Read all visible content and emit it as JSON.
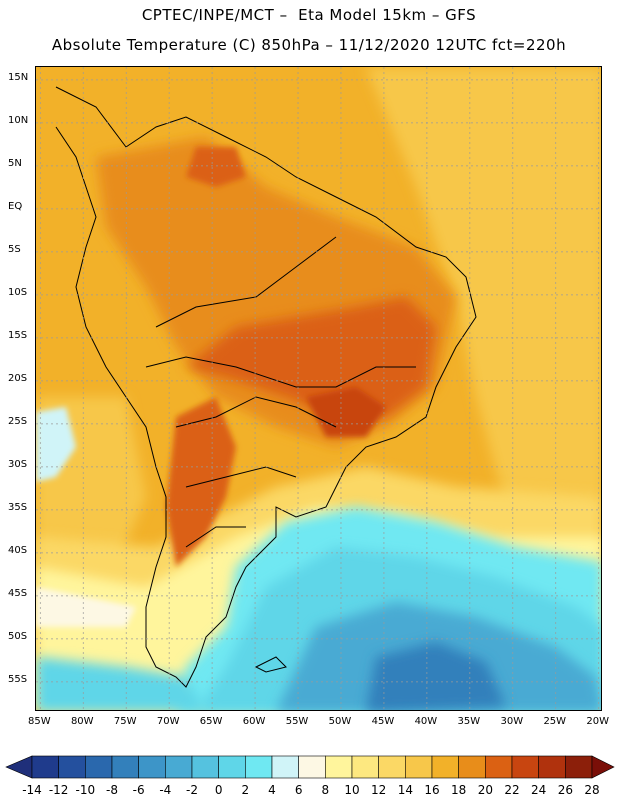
{
  "header": {
    "line1": "CPTEC/INPE/MCT –  Eta Model 15km – GFS",
    "line2": "Absolute Temperature (C) 850hPa – 11/12/2020 12UTC fct=220h"
  },
  "map": {
    "lat_labels": [
      "15N",
      "10N",
      "5N",
      "EQ",
      "5S",
      "10S",
      "15S",
      "20S",
      "25S",
      "30S",
      "35S",
      "40S",
      "45S",
      "50S",
      "55S"
    ],
    "lon_labels": [
      "85W",
      "80W",
      "75W",
      "70W",
      "65W",
      "60W",
      "55W",
      "50W",
      "45W",
      "40W",
      "35W",
      "30W",
      "25W",
      "20W"
    ],
    "extent": {
      "lon_min": -85.5,
      "lon_max": -19.5,
      "lat_min": -58.5,
      "lat_max": 16.5
    }
  },
  "colorbar": {
    "labels": [
      "-14",
      "-12",
      "-10",
      "-8",
      "-6",
      "-4",
      "-2",
      "0",
      "2",
      "4",
      "6",
      "8",
      "10",
      "12",
      "14",
      "16",
      "18",
      "20",
      "22",
      "24",
      "26",
      "28"
    ],
    "colors": [
      "#1f3b8c",
      "#24509e",
      "#2a68ad",
      "#3380bb",
      "#3d95c8",
      "#48aad3",
      "#55c2df",
      "#5fd6e8",
      "#6fe8f2",
      "#d0f4f8",
      "#fdf8e4",
      "#fff59c",
      "#fde880",
      "#fbd865",
      "#f7c74a",
      "#f2b129",
      "#e88d1a",
      "#db6113",
      "#c84510",
      "#b0320d",
      "#8c1f0a"
    ],
    "under_color": "#1f2f7a",
    "over_color": "#7a0f08"
  }
}
